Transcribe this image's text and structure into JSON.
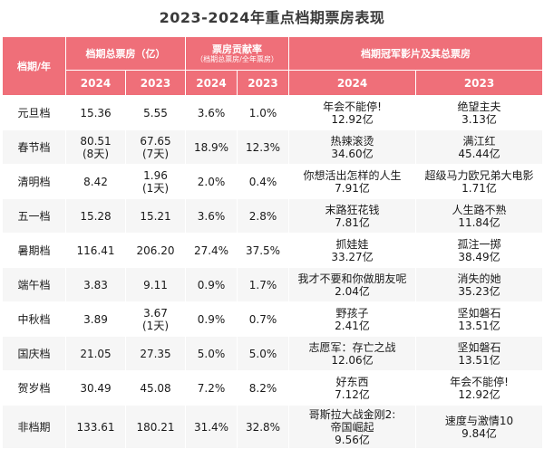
{
  "title": "2023-2024年重点档期票房表现",
  "headers": {
    "period": "档期/年",
    "total_box": "档期总票房（亿）",
    "contribution": "票房贡献率",
    "contribution_note": "（档期总票房/全年票房）",
    "champion": "档期冠军影片及其总票房",
    "y2024": "2024",
    "y2023": "2023"
  },
  "rows": [
    {
      "period": "元旦档",
      "box_2024": "15.36",
      "box_2023": "5.55",
      "rate_2024": "3.6%",
      "rate_2023": "1.0%",
      "film_2024": "年会不能停!",
      "film_2024_box": "12.92亿",
      "film_2023": "绝望主夫",
      "film_2023_box": "3.13亿"
    },
    {
      "period": "春节档",
      "box_2024": "80.51",
      "box_2024_note": "(8天)",
      "box_2023": "67.65",
      "box_2023_note": "(7天)",
      "rate_2024": "18.9%",
      "rate_2023": "12.3%",
      "film_2024": "热辣滚烫",
      "film_2024_box": "34.60亿",
      "film_2023": "满江红",
      "film_2023_box": "45.44亿"
    },
    {
      "period": "清明档",
      "box_2024": "8.42",
      "box_2023": "1.96",
      "box_2023_note": "(1天)",
      "rate_2024": "2.0%",
      "rate_2023": "0.4%",
      "film_2024": "你想活出怎样的人生",
      "film_2024_box": "7.91亿",
      "film_2023": "超级马力欧兄弟大电影",
      "film_2023_box": "1.71亿"
    },
    {
      "period": "五一档",
      "box_2024": "15.28",
      "box_2023": "15.21",
      "rate_2024": "3.6%",
      "rate_2023": "2.8%",
      "film_2024": "末路狂花钱",
      "film_2024_box": "7.81亿",
      "film_2023": "人生路不熟",
      "film_2023_box": "11.84亿"
    },
    {
      "period": "暑期档",
      "box_2024": "116.41",
      "box_2023": "206.20",
      "rate_2024": "27.4%",
      "rate_2023": "37.5%",
      "film_2024": "抓娃娃",
      "film_2024_box": "33.27亿",
      "film_2023": "孤注一掷",
      "film_2023_box": "38.49亿"
    },
    {
      "period": "端午档",
      "box_2024": "3.83",
      "box_2023": "9.11",
      "rate_2024": "0.9%",
      "rate_2023": "1.7%",
      "film_2024": "我才不要和你做朋友呢",
      "film_2024_box": "2.04亿",
      "film_2023": "消失的她",
      "film_2023_box": "35.23亿"
    },
    {
      "period": "中秋档",
      "box_2024": "3.89",
      "box_2023": "3.67",
      "box_2023_note": "(1天)",
      "rate_2024": "0.9%",
      "rate_2023": "0.7%",
      "film_2024": "野孩子",
      "film_2024_box": "2.41亿",
      "film_2023": "坚如磐石",
      "film_2023_box": "13.51亿"
    },
    {
      "period": "国庆档",
      "box_2024": "21.05",
      "box_2023": "27.35",
      "rate_2024": "5.0%",
      "rate_2023": "5.0%",
      "film_2024": "志愿军：存亡之战",
      "film_2024_box": "12.06亿",
      "film_2023": "坚如磐石",
      "film_2023_box": "13.51亿"
    },
    {
      "period": "贺岁档",
      "box_2024": "30.49",
      "box_2023": "45.08",
      "rate_2024": "7.2%",
      "rate_2023": "8.2%",
      "film_2024": "好东西",
      "film_2024_box": "7.12亿",
      "film_2023": "年会不能停!",
      "film_2023_box": "12.92亿"
    },
    {
      "period": "非档期",
      "box_2024": "133.61",
      "box_2023": "180.21",
      "rate_2024": "31.4%",
      "rate_2023": "32.8%",
      "film_2024": "哥斯拉大战金刚2:",
      "film_2024_line2": "帝国崛起",
      "film_2024_box": "9.56亿",
      "film_2023": "速度与激情10",
      "film_2023_box": "9.84亿"
    }
  ]
}
